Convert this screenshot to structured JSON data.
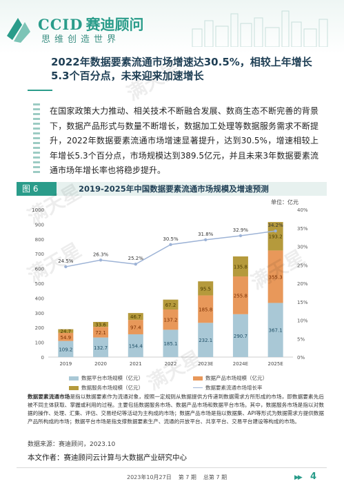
{
  "header": {
    "brand_en": "CCID",
    "brand_cn": "赛迪顾问",
    "brand_sub": "思维创造世界"
  },
  "title": "2022年数据要素流通市场增速达30.5%，相较上年增长5.3个百分点，未来迎来加速增长",
  "paragraph": "在国家政策大力推动、相关技术不断融合发展、数商生态不断完善的背景下，数据产品形式与数量不断增长，数据加工处理等数据服务需求不断提升，2022年数据要素流通市场增速显著提升，达到30.5%，增速相较上年增长5.3个百分点，市场规模达到389.5亿元，并且未来3年数据要素流通市场年增长率也将稳步提升。",
  "figure": {
    "tag": "图 6",
    "title": "2019-2025年中国数据要素流通市场规模及增速预测"
  },
  "chart_data": {
    "type": "bar",
    "stacked": true,
    "unit": "单位：亿元",
    "categories": [
      "2019",
      "2020",
      "2021",
      "2022",
      "2023E",
      "2024E",
      "2025E"
    ],
    "series": [
      {
        "name": "数据平台市场规模（亿元）",
        "color": "#a9c8d6",
        "values": [
          109.2,
          132.7,
          154.4,
          185.1,
          232.1,
          290.7,
          367.1
        ]
      },
      {
        "name": "数据产品市场规模（亿元）",
        "color": "#e8985a",
        "values": [
          54.9,
          72.1,
          97.4,
          137.2,
          185.8,
          255.8,
          355.3
        ]
      },
      {
        "name": "数据服务市场规模（亿元）",
        "color": "#b59a3c",
        "values": [
          24.7,
          33.6,
          46.7,
          67.2,
          95.5,
          135.8,
          193.2
        ]
      }
    ],
    "line": {
      "name": "数据要素流通市场增长率",
      "color": "#9db3d6",
      "values": [
        24.5,
        26.3,
        25.2,
        30.5,
        31.8,
        32.9,
        34.2
      ],
      "labels": [
        "24.5%",
        "26.3%",
        "25.2%",
        "30.5%",
        "31.8%",
        "32.9%",
        "34.2%"
      ]
    },
    "left_axis": {
      "ylim": [
        0,
        1000
      ],
      "ticks": [
        "0",
        "100",
        "200",
        "300",
        "400",
        "500",
        "600",
        "700",
        "800",
        "900",
        "1000"
      ]
    },
    "right_axis": {
      "ylim": [
        0,
        40
      ],
      "ticks": [
        "0%",
        "5%",
        "10%",
        "15%",
        "20%",
        "25%",
        "30%",
        "35%",
        "40%"
      ]
    },
    "grid": false,
    "legend": "bottom"
  },
  "note_bold": "数据要素流通市场",
  "note": "是指以数据要素作为流通对象，按照一定规则从数据提供方传递到数据需求方所形成的市场，即数据要素先后被不同主体获取、掌握或利用的过程。主要包括数据服务市场、数据产品市场和数据平台市场。其中，数据服务市场是指以对数据的操作、处理、汇集、评估、交易经纪等活动为主构成的市场；数据产品市场是指以数据集、API等形式为数据需求方提供数据产品所构成的市场；数据平台市场是指支撑数据要素生产、流通的开放平台、共享平台、交易平台建设等构成的市场。",
  "source": "数据来源：赛迪顾问，2023.10",
  "author": "本文作者：赛迪顾问云计算与大数据产业研究中心",
  "footer": {
    "date": "2023年10月27日",
    "issue": "第 7 期",
    "total": "总第 7 期",
    "page": "4"
  },
  "watermarks": [
    "满天星",
    "满天星",
    "满天星",
    "满天星",
    "满天星"
  ]
}
